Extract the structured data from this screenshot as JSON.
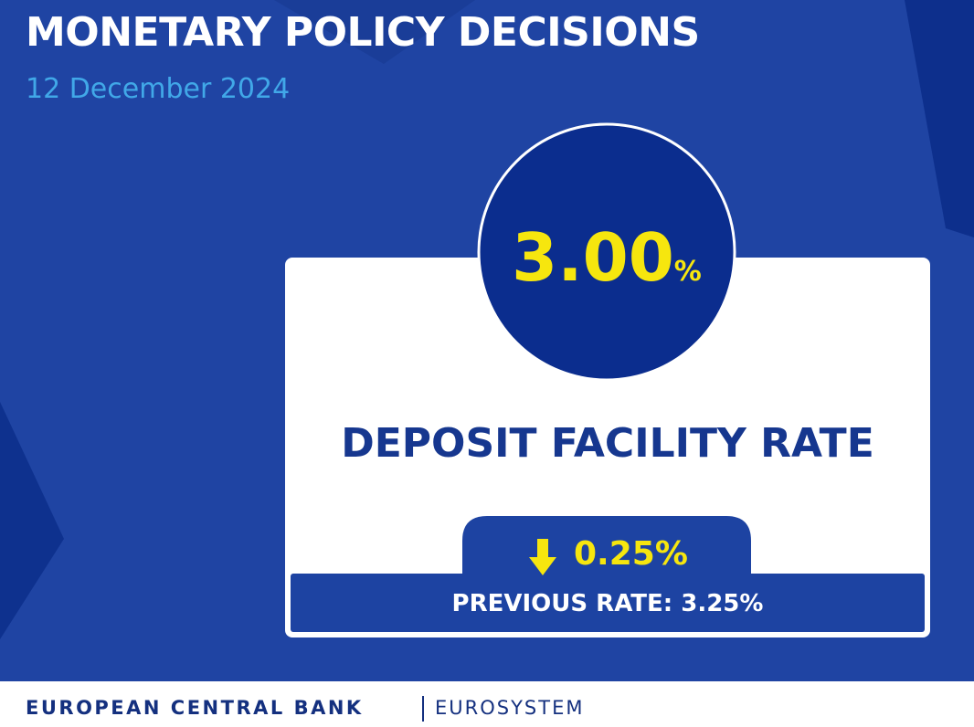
{
  "header": {
    "title": "MONETARY POLICY DECISIONS",
    "date": "12 December 2024"
  },
  "card": {
    "rate": "3.00",
    "rate_unit": "%",
    "label": "DEPOSIT FACILITY RATE",
    "change": "0.25%",
    "previous": "PREVIOUS RATE: 3.25%"
  },
  "footer": {
    "organization": "EUROPEAN CENTRAL BANK",
    "system": "EUROSYSTEM"
  }
}
